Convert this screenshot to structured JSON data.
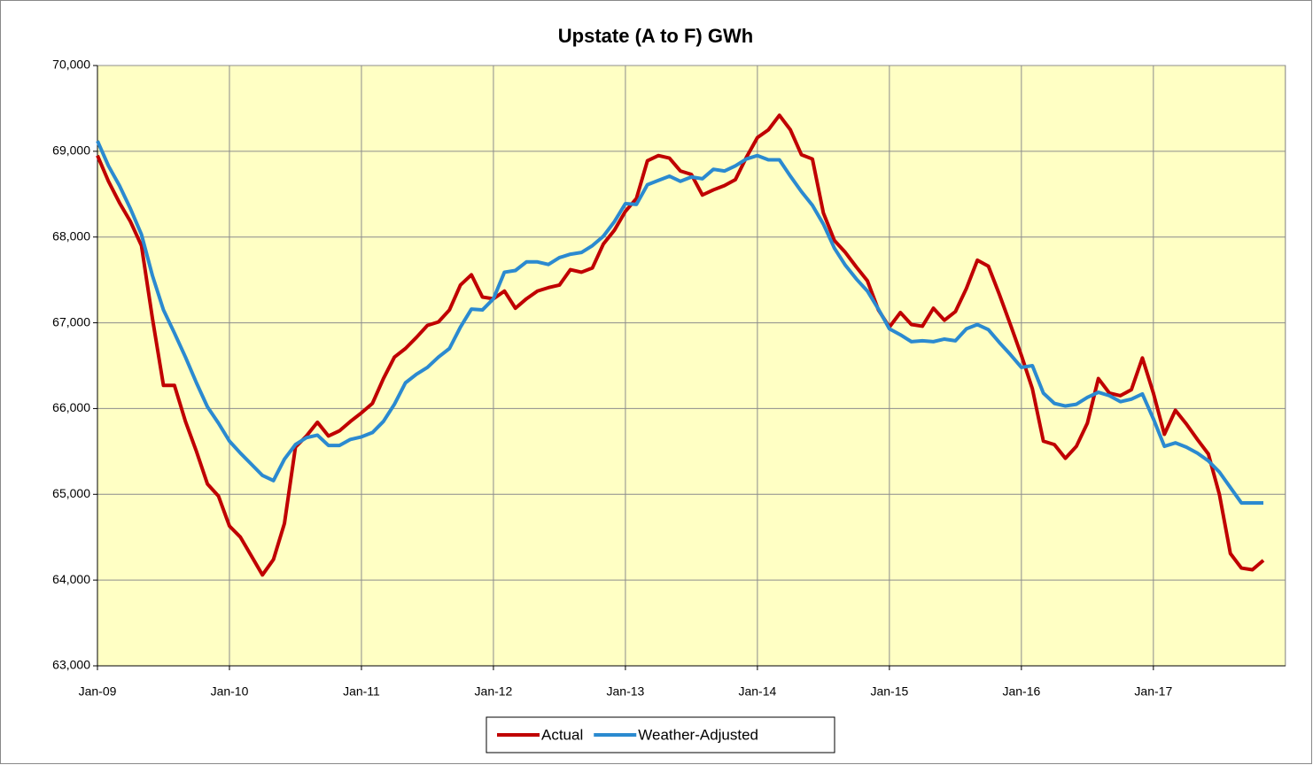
{
  "chart_data": {
    "type": "line",
    "title": "Upstate (A to F) GWh",
    "categories": [
      "Jan-09",
      null,
      null,
      null,
      null,
      null,
      null,
      null,
      null,
      null,
      null,
      null,
      "Jan-10",
      null,
      null,
      null,
      null,
      null,
      null,
      null,
      null,
      null,
      null,
      null,
      "Jan-11",
      null,
      null,
      null,
      null,
      null,
      null,
      null,
      null,
      null,
      null,
      null,
      "Jan-12",
      null,
      null,
      null,
      null,
      null,
      null,
      null,
      null,
      null,
      null,
      null,
      "Jan-13",
      null,
      null,
      null,
      null,
      null,
      null,
      null,
      null,
      null,
      null,
      null,
      "Jan-14",
      null,
      null,
      null,
      null,
      null,
      null,
      null,
      null,
      null,
      null,
      null,
      "Jan-15",
      null,
      null,
      null,
      null,
      null,
      null,
      null,
      null,
      null,
      null,
      null,
      "Jan-16",
      null,
      null,
      null,
      null,
      null,
      null,
      null,
      null,
      null,
      null,
      null,
      "Jan-17",
      null,
      null,
      null,
      null,
      null,
      null,
      null,
      null,
      null,
      null,
      null
    ],
    "series": [
      {
        "name": "Actual",
        "color": "#c00000",
        "values": [
          68950,
          68650,
          68400,
          68180,
          67900,
          67050,
          66270,
          66270,
          65850,
          65500,
          65120,
          64980,
          64630,
          64500,
          64280,
          64060,
          64240,
          64660,
          65550,
          65680,
          65840,
          65680,
          65740,
          65850,
          65950,
          66060,
          66350,
          66600,
          66700,
          66830,
          66970,
          67010,
          67150,
          67440,
          67560,
          67300,
          67280,
          67370,
          67170,
          67280,
          67370,
          67410,
          67440,
          67620,
          67590,
          67640,
          67920,
          68080,
          68300,
          68450,
          68890,
          68950,
          68920,
          68770,
          68730,
          68490,
          68550,
          68600,
          68670,
          68930,
          69160,
          69250,
          69420,
          69250,
          68960,
          68910,
          68280,
          67960,
          67820,
          67650,
          67490,
          67150,
          66950,
          67120,
          66980,
          66960,
          67170,
          67030,
          67130,
          67400,
          67730,
          67660,
          67330,
          66980,
          66620,
          66230,
          65620,
          65580,
          65420,
          65560,
          65830,
          66350,
          66180,
          66150,
          66220,
          66590,
          66180,
          65700,
          65980,
          65820,
          65640,
          65470,
          65000,
          64310,
          64140,
          64120,
          64230,
          null
        ]
      },
      {
        "name": "Weather-Adjusted",
        "color": "#2b8ad0",
        "values": [
          69120,
          68830,
          68600,
          68330,
          68030,
          67550,
          67150,
          66880,
          66600,
          66300,
          66020,
          65830,
          65620,
          65480,
          65350,
          65220,
          65160,
          65410,
          65580,
          65660,
          65690,
          65570,
          65570,
          65640,
          65670,
          65720,
          65850,
          66050,
          66300,
          66400,
          66480,
          66600,
          66700,
          66950,
          67160,
          67150,
          67280,
          67590,
          67610,
          67710,
          67710,
          67680,
          67760,
          67800,
          67820,
          67900,
          68010,
          68180,
          68390,
          68380,
          68610,
          68660,
          68710,
          68650,
          68700,
          68680,
          68790,
          68770,
          68830,
          68910,
          68950,
          68900,
          68900,
          68710,
          68530,
          68370,
          68150,
          67870,
          67670,
          67510,
          67370,
          67160,
          66930,
          66860,
          66780,
          66790,
          66780,
          66810,
          66790,
          66930,
          66980,
          66920,
          66770,
          66630,
          66480,
          66500,
          66180,
          66060,
          66030,
          66050,
          66130,
          66190,
          66150,
          66080,
          66110,
          66170,
          65880,
          65560,
          65600,
          65550,
          65480,
          65390,
          65260,
          65080,
          64900,
          64900,
          64900,
          null
        ]
      }
    ],
    "ylim": [
      63000,
      70000
    ],
    "yticks": [
      {
        "value": 63000,
        "label": "63,000"
      },
      {
        "value": 64000,
        "label": "64,000"
      },
      {
        "value": 65000,
        "label": "65,000"
      },
      {
        "value": 66000,
        "label": "66,000"
      },
      {
        "value": 67000,
        "label": "67,000"
      },
      {
        "value": 68000,
        "label": "68,000"
      },
      {
        "value": 69000,
        "label": "69,000"
      },
      {
        "value": 70000,
        "label": "70,000"
      }
    ],
    "grid": true,
    "legend": "bottom",
    "plot_background": "#ffffc4"
  }
}
